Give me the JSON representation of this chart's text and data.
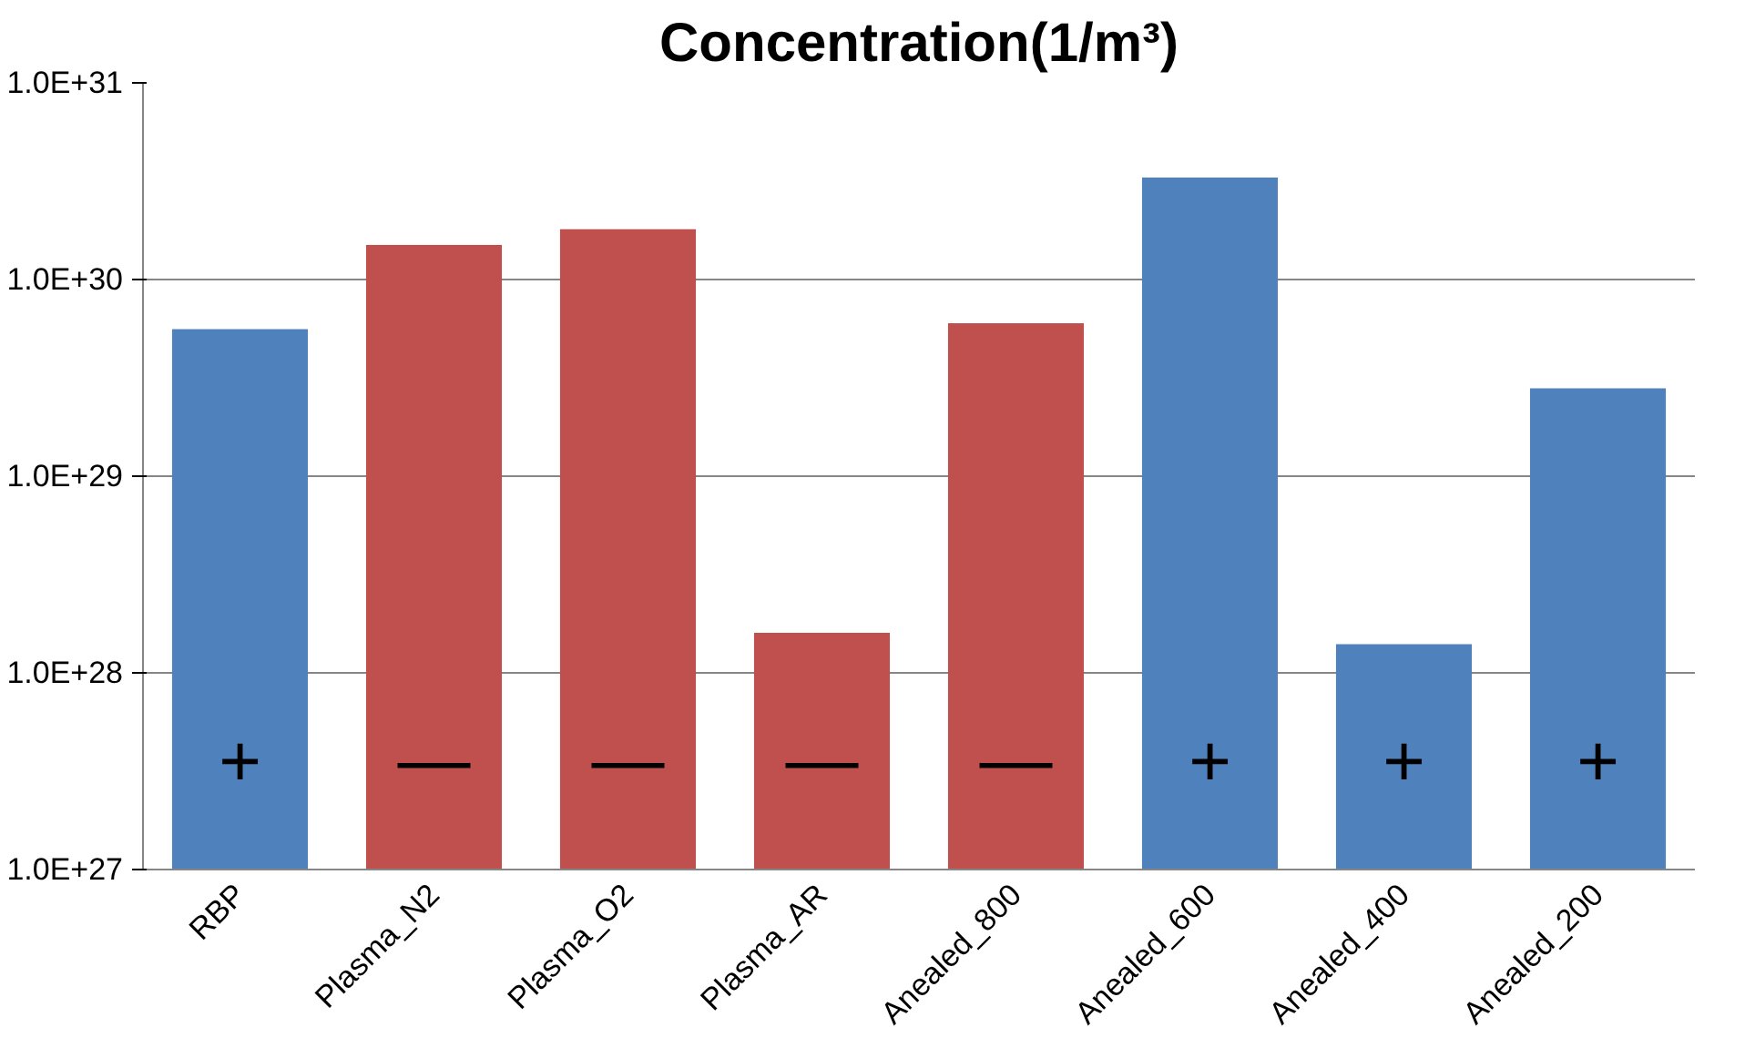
{
  "chart_data": {
    "type": "bar",
    "title": "Concentration(1/m³)",
    "log": "y",
    "grid": "y",
    "categories": [
      "RBP",
      "Plasma_N2",
      "Plasma_O2",
      "Plasma_AR",
      "Anealed_800",
      "Anealed_600",
      "Anealed_400",
      "Anealed_200"
    ],
    "values": [
      5.6e+29,
      1.5e+30,
      1.8e+30,
      1.6e+28,
      6e+29,
      3.3e+30,
      1.4e+28,
      2.8e+29
    ],
    "colors": [
      "#4f81bd",
      "#c0504d",
      "#c0504d",
      "#c0504d",
      "#c0504d",
      "#4f81bd",
      "#4f81bd",
      "#4f81bd"
    ],
    "ylim": [
      1e+27,
      1e+31
    ],
    "yticks": [
      {
        "value": 1e+27,
        "label": "1.0E+27"
      },
      {
        "value": 1e+28,
        "label": "1.0E+28"
      },
      {
        "value": 1e+29,
        "label": "1.0E+29"
      },
      {
        "value": 1e+30,
        "label": "1.0E+30"
      },
      {
        "value": 1e+31,
        "label": "1.0E+31"
      }
    ],
    "annotations": [
      "+",
      "—",
      "—",
      "—",
      "—",
      "+",
      "+",
      "+"
    ]
  }
}
